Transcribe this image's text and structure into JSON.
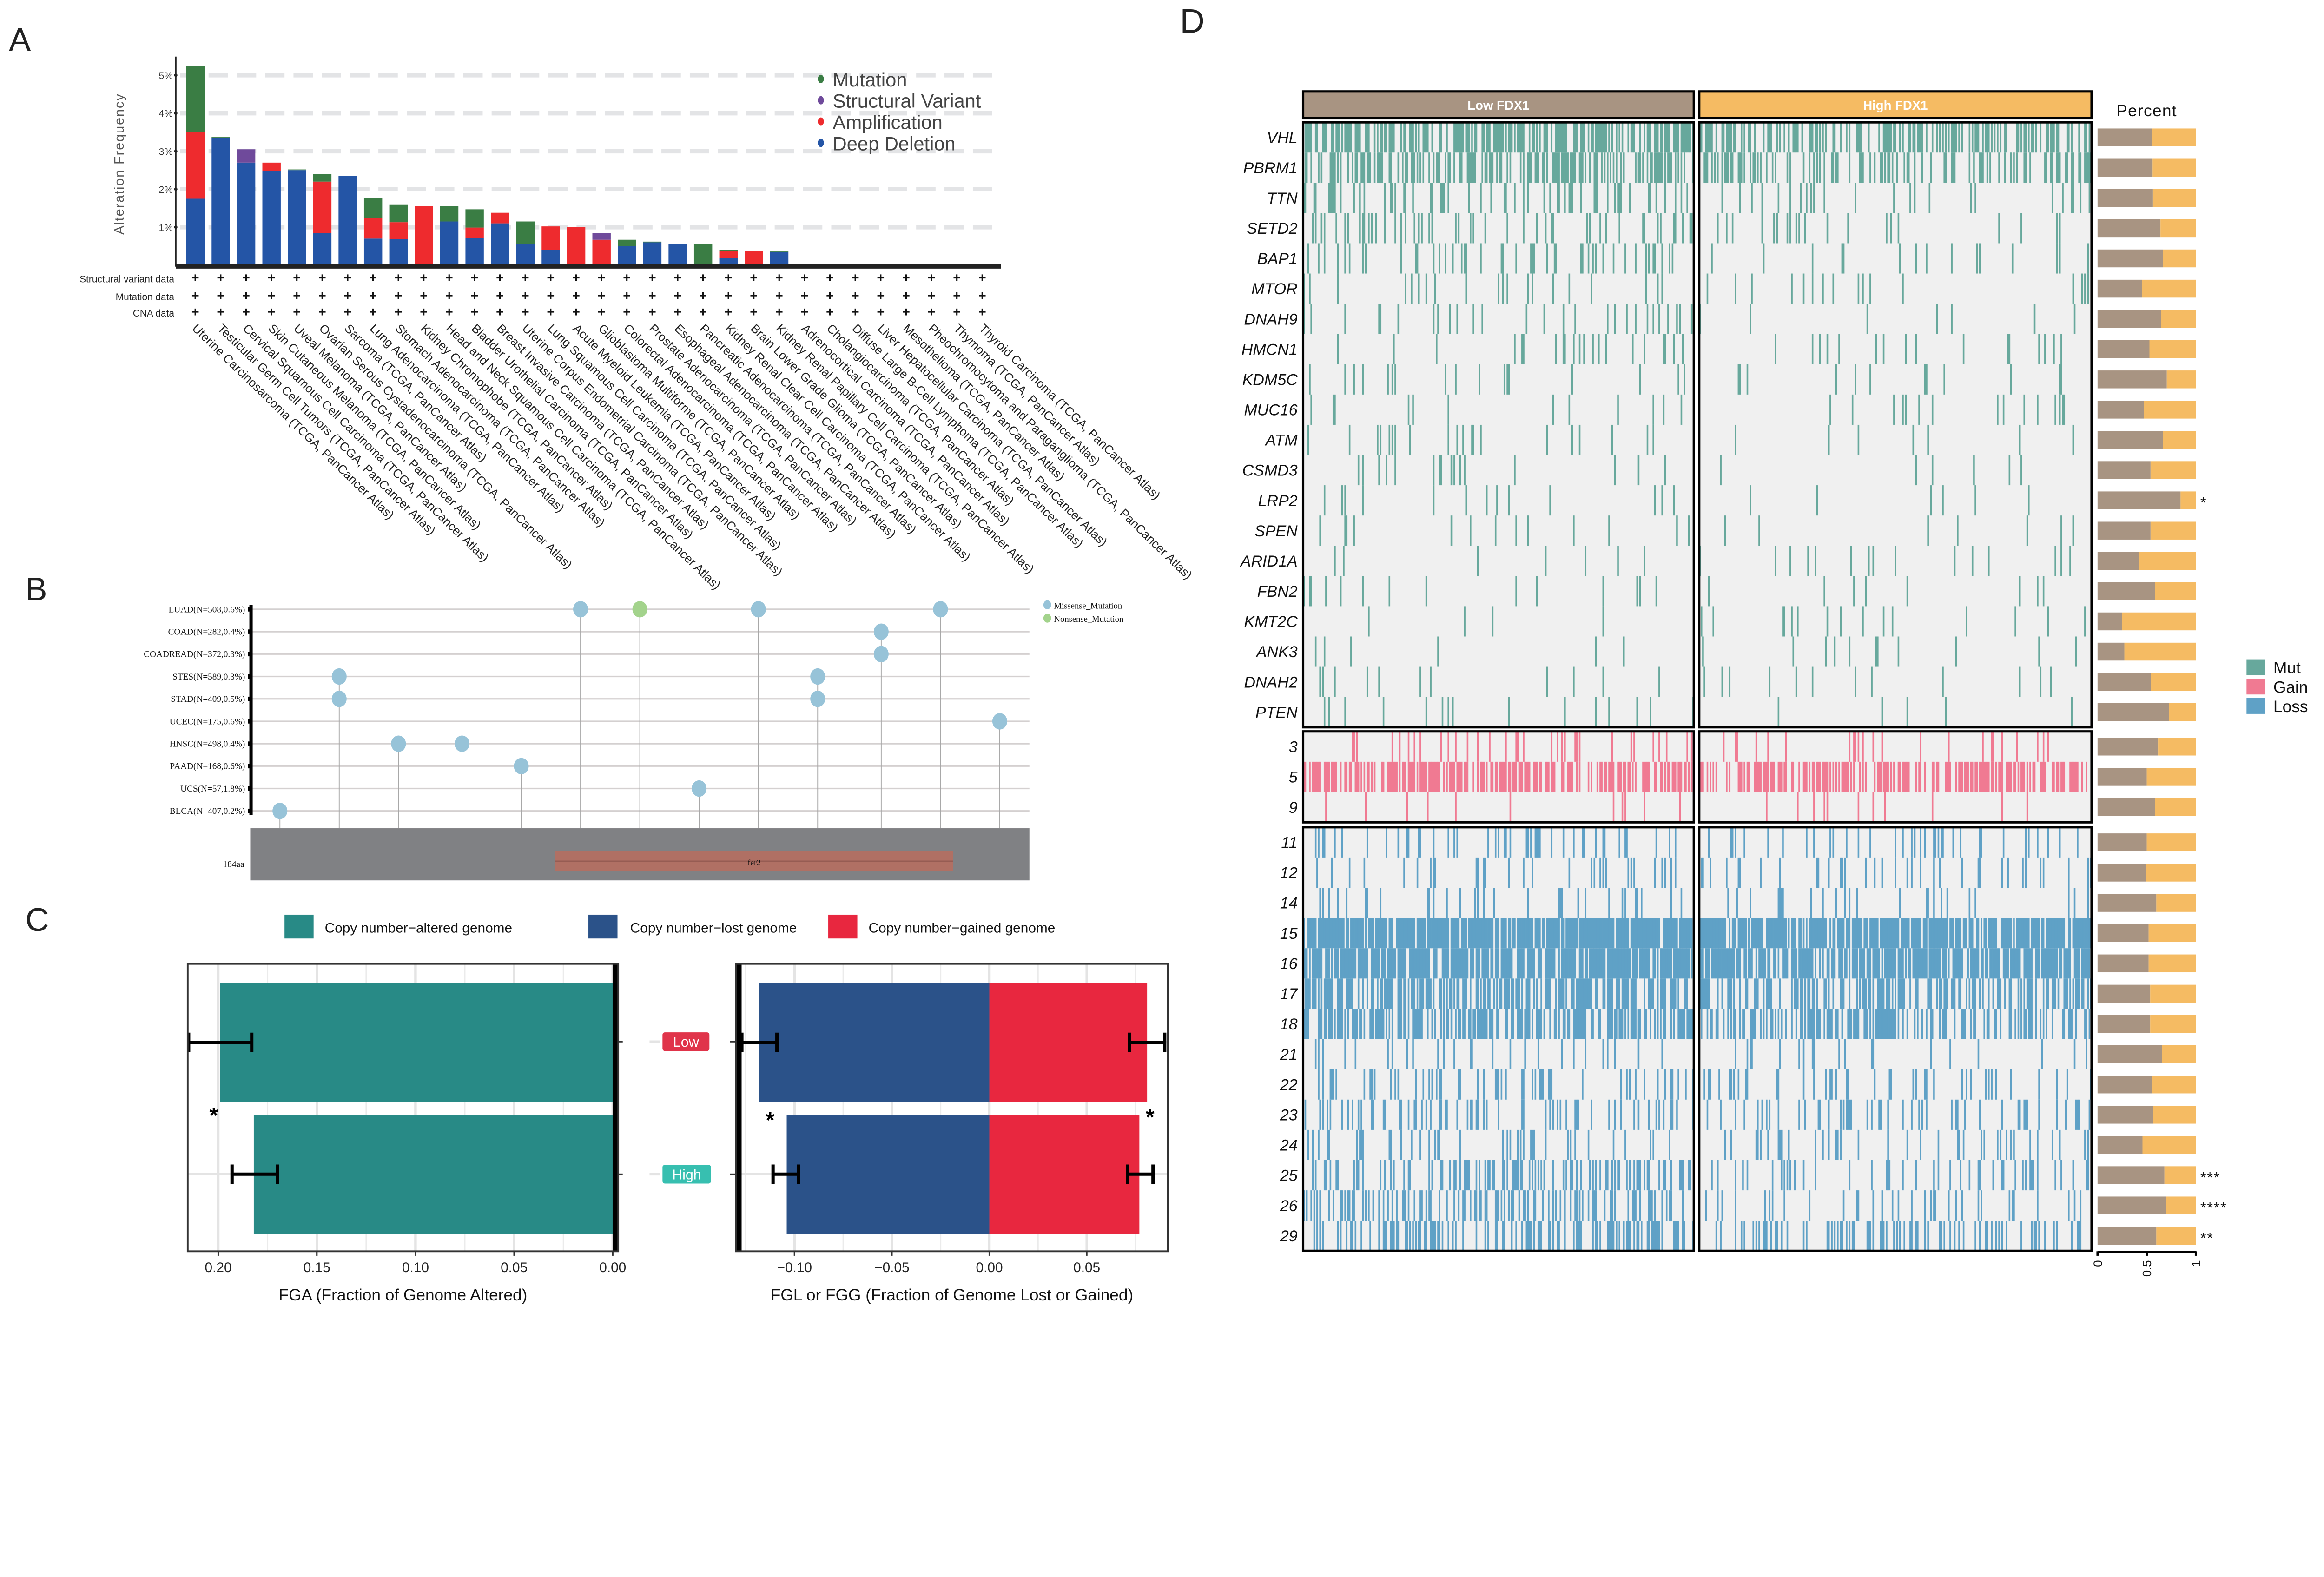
{
  "panel_labels": {
    "a": "A",
    "b": "B",
    "c": "C",
    "d": "D"
  },
  "chart_data": [
    {
      "panel": "A",
      "type": "bar",
      "stacked": true,
      "ylabel": "Alteration Frequency",
      "ylim": [
        0,
        5.6
      ],
      "yticks": [
        "1%",
        "2%",
        "3%",
        "4%",
        "5%"
      ],
      "grid": true,
      "legend_position": "top-right",
      "profile_rows": [
        "Structural variant data",
        "Mutation data",
        "CNA data"
      ],
      "profile_marker": "+",
      "categories": [
        "Uterine Carcinosarcoma (TCGA, PanCancer Atlas)",
        "Testicular Germ Cell Tumors (TCGA, PanCancer Atlas)",
        "Cervical Squamous Cell Carcinoma (TCGA, PanCancer Atlas)",
        "Skin Cutaneous Melanoma (TCGA, PanCancer Atlas)",
        "Uveal Melanoma (TCGA, PanCancer Atlas)",
        "Ovarian Serous Cystadenocarcinoma (TCGA, PanCancer Atlas)",
        "Sarcoma (TCGA, PanCancer Atlas)",
        "Lung Adenocarcinoma (TCGA, PanCancer Atlas)",
        "Stomach Adenocarcinoma (TCGA, PanCancer Atlas)",
        "Kidney Chromophobe (TCGA, PanCancer Atlas)",
        "Head and Neck Squamous Cell Carcinoma (TCGA, PanCancer Atlas)",
        "Bladder Urothelial Carcinoma (TCGA, PanCancer Atlas)",
        "Breast Invasive Carcinoma (TCGA, PanCancer Atlas)",
        "Uterine Corpus Endometrial Carcinoma (TCGA, PanCancer Atlas)",
        "Lung Squamous Cell Carcinoma (TCGA, PanCancer Atlas)",
        "Acute Myeloid Leukemia (TCGA, PanCancer Atlas)",
        "Glioblastoma Multiforme (TCGA, PanCancer Atlas)",
        "Colorectal Adenocarcinoma (TCGA, PanCancer Atlas)",
        "Prostate Adenocarcinoma (TCGA, PanCancer Atlas)",
        "Esophageal Adenocarcinoma (TCGA, PanCancer Atlas)",
        "Pancreatic Adenocarcinoma (TCGA, PanCancer Atlas)",
        "Kidney Renal Clear Cell Carcinoma (TCGA, PanCancer Atlas)",
        "Brain Lower Grade Glioma (TCGA, PanCancer Atlas)",
        "Kidney Renal Papillary Cell Carcinoma (TCGA, PanCancer Atlas)",
        "Adrenocortical Carcinoma (TCGA, PanCancer Atlas)",
        "Cholangiocarcinoma (TCGA, PanCancer Atlas)",
        "Diffuse Large B-Cell Lymphoma (TCGA, PanCancer Atlas)",
        "Liver Hepatocellular Carcinoma (TCGA, PanCancer Atlas)",
        "Mesothelioma (TCGA, PanCancer Atlas)",
        "Pheochromocytoma and Paraganglioma (TCGA, PanCancer Atlas)",
        "Thymoma (TCGA, PanCancer Atlas)",
        "Thyroid Carcinoma (TCGA, PanCancer Atlas)"
      ],
      "series": [
        {
          "name": "Deep Deletion",
          "color": "#2455a6",
          "values": [
            1.75,
            3.35,
            2.7,
            2.48,
            2.5,
            0.85,
            2.35,
            0.7,
            0.68,
            0,
            1.15,
            0.72,
            1.1,
            0.55,
            0.4,
            0,
            0,
            0.5,
            0.6,
            0.55,
            0,
            0.18,
            0,
            0.35,
            0,
            0,
            0,
            0,
            0,
            0,
            0,
            0
          ]
        },
        {
          "name": "Amplification",
          "color": "#ee2b2e",
          "values": [
            1.75,
            0,
            0,
            0.22,
            0,
            1.35,
            0,
            0.53,
            0.45,
            1.55,
            0,
            0.27,
            0.28,
            0,
            0.62,
            1.0,
            0.67,
            0,
            0,
            0,
            0,
            0.2,
            0.38,
            0,
            0,
            0,
            0,
            0,
            0,
            0,
            0,
            0
          ]
        },
        {
          "name": "Structural Variant",
          "color": "#6f4a9b",
          "values": [
            0,
            0,
            0.35,
            0,
            0,
            0,
            0,
            0,
            0,
            0,
            0,
            0,
            0,
            0,
            0,
            0,
            0.17,
            0,
            0,
            0,
            0,
            0,
            0,
            0,
            0,
            0,
            0,
            0,
            0,
            0,
            0,
            0
          ]
        },
        {
          "name": "Mutation",
          "color": "#3a7d44",
          "values": [
            1.75,
            0.02,
            0,
            0,
            0.02,
            0.2,
            0,
            0.55,
            0.47,
            0,
            0.4,
            0.48,
            0,
            0.6,
            0,
            0,
            0,
            0.17,
            0.02,
            0,
            0.55,
            0.02,
            0,
            0.02,
            0,
            0,
            0,
            0,
            0,
            0,
            0,
            0
          ]
        }
      ],
      "legend": [
        "Mutation",
        "Structural Variant",
        "Amplification",
        "Deep Deletion"
      ]
    },
    {
      "panel": "B",
      "type": "lollipop",
      "protein_length": 184,
      "protein_length_label": "184aa",
      "domain": {
        "name": "fer2",
        "start": 72,
        "end": 166,
        "color": "#b07064"
      },
      "rows": [
        "LUAD(N=508,0.6%)",
        "COAD(N=282,0.4%)",
        "COADREAD(N=372,0.3%)",
        "STES(N=589,0.3%)",
        "STAD(N=409,0.5%)",
        "UCEC(N=175,0.6%)",
        "HNSC(N=498,0.4%)",
        "PAAD(N=168,0.6%)",
        "UCS(N=57,1.8%)",
        "BLCA(N=407,0.2%)"
      ],
      "legend": [
        {
          "name": "Missense_Mutation",
          "color": "#97c3d8"
        },
        {
          "name": "Nonsense_Mutation",
          "color": "#a3d38c"
        }
      ],
      "mutations": [
        {
          "position": 7,
          "rows": [
            9
          ],
          "type": 0
        },
        {
          "position": 21,
          "rows": [
            3,
            4
          ],
          "type": 0
        },
        {
          "position": 35,
          "rows": [
            6
          ],
          "type": 0
        },
        {
          "position": 50,
          "rows": [
            6
          ],
          "type": 0
        },
        {
          "position": 64,
          "rows": [
            7
          ],
          "type": 0
        },
        {
          "position": 78,
          "rows": [
            0
          ],
          "type": 0
        },
        {
          "position": 92,
          "rows": [
            0
          ],
          "type": 1
        },
        {
          "position": 106,
          "rows": [
            8
          ],
          "type": 0
        },
        {
          "position": 120,
          "rows": [
            0
          ],
          "type": 0
        },
        {
          "position": 134,
          "rows": [
            3,
            4
          ],
          "type": 0
        },
        {
          "position": 149,
          "rows": [
            1,
            2
          ],
          "type": 0
        },
        {
          "position": 163,
          "rows": [
            0
          ],
          "type": 0
        },
        {
          "position": 177,
          "rows": [
            5
          ],
          "type": 0
        }
      ]
    },
    {
      "panel": "C-left",
      "type": "bar",
      "orientation": "horizontal",
      "xlabel": "FGA (Fraction of Genome Altered)",
      "categories": [
        "Low",
        "High"
      ],
      "category_colors": [
        "#e0344a",
        "#37bfb0"
      ],
      "xlim": [
        0.2154,
        -0.0027
      ],
      "xtick_values": [
        0.2,
        0.15,
        0.1,
        0.05,
        0
      ],
      "xticks": [
        "0.20",
        "0.15",
        "0.10",
        "0.05",
        "0.00"
      ],
      "series": [
        {
          "name": "Copy number−altered genome",
          "color": "#288a86",
          "values": [
            0.199,
            0.182
          ],
          "error_low": [
            0.183,
            0.17
          ],
          "error_high": [
            0.215,
            0.193
          ]
        }
      ],
      "significance": "*"
    },
    {
      "panel": "C-right",
      "type": "bar",
      "orientation": "horizontal",
      "xlabel": "FGL or FGG (Fraction of Genome Lost or Gained)",
      "categories": [
        "Low",
        "High"
      ],
      "xlim": [
        -0.13,
        0.0917
      ],
      "xtick_values": [
        -0.1,
        -0.05,
        0,
        0.05
      ],
      "xticks": [
        "−0.10",
        "−0.05",
        "0.00",
        "0.05"
      ],
      "series": [
        {
          "name": "Copy number−lost genome",
          "color": "#2b5289",
          "values": [
            -0.118,
            -0.104
          ],
          "error_low": [
            -0.127,
            -0.111
          ],
          "error_high": [
            -0.109,
            -0.098
          ]
        },
        {
          "name": "Copy number−gained genome",
          "color": "#e8273f",
          "values": [
            0.081,
            0.077
          ],
          "error_low": [
            0.072,
            0.071
          ],
          "error_high": [
            0.09,
            0.084
          ]
        }
      ],
      "significance": [
        "*",
        "*"
      ]
    },
    {
      "panel": "D",
      "type": "heatmap",
      "groups": [
        "Low FDX1",
        "High FDX1"
      ],
      "group_colors": [
        "#a89482",
        "#f5bb63"
      ],
      "samples_per_group": 265,
      "background": "#f0f0f0",
      "percent_title": "Percent",
      "percent_ticks": [
        "0",
        "0.5",
        "1"
      ],
      "legend": [
        {
          "name": "Mut",
          "color": "#67a89c"
        },
        {
          "name": "Gain",
          "color": "#f07a92"
        },
        {
          "name": "Loss",
          "color": "#5fa1c6"
        }
      ],
      "blocks": [
        {
          "kind": 0,
          "rows": [
            {
              "label": "VHL",
              "rate": 0.5,
              "low_fraction": 0.554,
              "sig": ""
            },
            {
              "label": "PBRM1",
              "rate": 0.4,
              "low_fraction": 0.56,
              "sig": ""
            },
            {
              "label": "TTN",
              "rate": 0.15,
              "low_fraction": 0.563,
              "sig": ""
            },
            {
              "label": "SETD2",
              "rate": 0.13,
              "low_fraction": 0.64,
              "sig": ""
            },
            {
              "label": "BAP1",
              "rate": 0.1,
              "low_fraction": 0.663,
              "sig": ""
            },
            {
              "label": "MTOR",
              "rate": 0.07,
              "low_fraction": 0.454,
              "sig": ""
            },
            {
              "label": "DNAH9",
              "rate": 0.06,
              "low_fraction": 0.645,
              "sig": ""
            },
            {
              "label": "HMCN1",
              "rate": 0.06,
              "low_fraction": 0.528,
              "sig": ""
            },
            {
              "label": "KDM5C",
              "rate": 0.06,
              "low_fraction": 0.704,
              "sig": ""
            },
            {
              "label": "MUC16",
              "rate": 0.05,
              "low_fraction": 0.469,
              "sig": ""
            },
            {
              "label": "ATM",
              "rate": 0.05,
              "low_fraction": 0.663,
              "sig": ""
            },
            {
              "label": "CSMD3",
              "rate": 0.05,
              "low_fraction": 0.539,
              "sig": ""
            },
            {
              "label": "LRP2",
              "rate": 0.04,
              "low_fraction": 0.844,
              "sig": "*"
            },
            {
              "label": "SPEN",
              "rate": 0.04,
              "low_fraction": 0.539,
              "sig": ""
            },
            {
              "label": "ARID1A",
              "rate": 0.04,
              "low_fraction": 0.419,
              "sig": ""
            },
            {
              "label": "FBN2",
              "rate": 0.04,
              "low_fraction": 0.583,
              "sig": ""
            },
            {
              "label": "KMT2C",
              "rate": 0.04,
              "low_fraction": 0.25,
              "sig": ""
            },
            {
              "label": "ANK3",
              "rate": 0.04,
              "low_fraction": 0.273,
              "sig": ""
            },
            {
              "label": "DNAH2",
              "rate": 0.04,
              "low_fraction": 0.543,
              "sig": ""
            },
            {
              "label": "PTEN",
              "rate": 0.04,
              "low_fraction": 0.727,
              "sig": ""
            }
          ]
        },
        {
          "kind": 1,
          "rows": [
            {
              "label": "3",
              "rate": 0.1,
              "low_fraction": 0.616,
              "sig": ""
            },
            {
              "label": "5",
              "rate": 0.6,
              "low_fraction": 0.5,
              "sig": ""
            },
            {
              "label": "9",
              "rate": 0.05,
              "low_fraction": 0.583,
              "sig": ""
            }
          ]
        },
        {
          "kind": 2,
          "rows": [
            {
              "label": "11",
              "rate": 0.15,
              "low_fraction": 0.5,
              "sig": ""
            },
            {
              "label": "12",
              "rate": 0.12,
              "low_fraction": 0.489,
              "sig": ""
            },
            {
              "label": "14",
              "rate": 0.1,
              "low_fraction": 0.598,
              "sig": ""
            },
            {
              "label": "15",
              "rate": 0.85,
              "low_fraction": 0.519,
              "sig": ""
            },
            {
              "label": "16",
              "rate": 0.8,
              "low_fraction": 0.519,
              "sig": ""
            },
            {
              "label": "17",
              "rate": 0.55,
              "low_fraction": 0.536,
              "sig": ""
            },
            {
              "label": "18",
              "rate": 0.55,
              "low_fraction": 0.536,
              "sig": ""
            },
            {
              "label": "21",
              "rate": 0.1,
              "low_fraction": 0.657,
              "sig": ""
            },
            {
              "label": "22",
              "rate": 0.2,
              "low_fraction": 0.554,
              "sig": ""
            },
            {
              "label": "23",
              "rate": 0.2,
              "low_fraction": 0.566,
              "sig": ""
            },
            {
              "label": "24",
              "rate": 0.15,
              "low_fraction": 0.457,
              "sig": ""
            },
            {
              "label": "25",
              "rate": 0.25,
              "low_fraction": 0.68,
              "sig": "***"
            },
            {
              "label": "26",
              "rate": 0.25,
              "low_fraction": 0.692,
              "sig": "****"
            },
            {
              "label": "29",
              "rate": 0.3,
              "low_fraction": 0.598,
              "sig": "**"
            }
          ]
        }
      ]
    }
  ]
}
